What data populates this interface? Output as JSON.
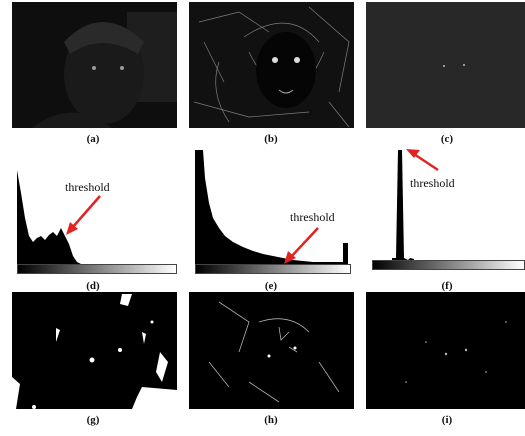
{
  "captions": [
    "(a)",
    "(b)",
    "(c)",
    "(d)",
    "(e)",
    "(f)",
    "(g)",
    "(h)",
    "(i)"
  ],
  "annotations": {
    "d": "threshold",
    "e": "threshold",
    "f": "threshold"
  },
  "colors": {
    "arrow": "#e32222",
    "bars": "#000000",
    "background": "#ffffff"
  }
}
